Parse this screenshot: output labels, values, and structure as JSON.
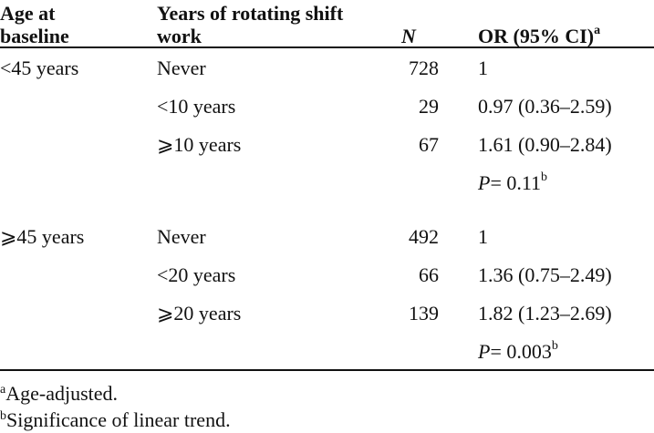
{
  "table": {
    "header": [
      "Age at baseline",
      "Years of rotating shift work",
      "N",
      "OR (95% CI)"
    ],
    "header_marker": "a",
    "groups": [
      {
        "age": "<45 years",
        "rows": [
          {
            "years": "Never",
            "n": "728",
            "or": "1"
          },
          {
            "years": "<10 years",
            "n": "29",
            "or": "0.97 (0.36–2.59)"
          },
          {
            "years": "⩾10 years",
            "n": "67",
            "or": "1.61 (0.90–2.84)"
          }
        ],
        "trend": {
          "p": "P",
          "value": "= 0.11",
          "marker": "b"
        }
      },
      {
        "age": "⩾45 years",
        "rows": [
          {
            "years": "Never",
            "n": "492",
            "or": "1"
          },
          {
            "years": "<20 years",
            "n": "66",
            "or": "1.36 (0.75–2.49)"
          },
          {
            "years": "⩾20 years",
            "n": "139",
            "or": "1.82 (1.23–2.69)"
          }
        ],
        "trend": {
          "p": "P",
          "value": "= 0.003",
          "marker": "b"
        }
      }
    ],
    "footnotes": [
      {
        "marker": "a",
        "text": "Age-adjusted."
      },
      {
        "marker": "b",
        "text": "Significance of linear trend."
      }
    ]
  }
}
